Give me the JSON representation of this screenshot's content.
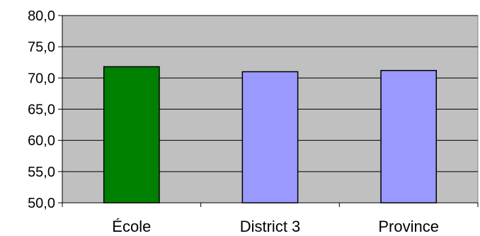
{
  "chart_data": {
    "type": "bar",
    "title": "",
    "xlabel": "",
    "ylabel": "",
    "categories": [
      "École",
      "District 3",
      "Province"
    ],
    "values": [
      71.8,
      71.0,
      71.2
    ],
    "ylim": [
      50,
      80
    ],
    "ytick_values": [
      50,
      55,
      60,
      65,
      70,
      75,
      80
    ],
    "ytick_labels": [
      "50,0",
      "55,0",
      "60,0",
      "65,0",
      "70,0",
      "75,0",
      "80,0"
    ],
    "grid": true,
    "legend": "none",
    "colors": {
      "plot_background": "#c0c0c0",
      "bars": [
        "#008000",
        "#9999ff",
        "#9999ff"
      ],
      "bar_outline": "#000000",
      "gridlines": "#000000"
    }
  }
}
